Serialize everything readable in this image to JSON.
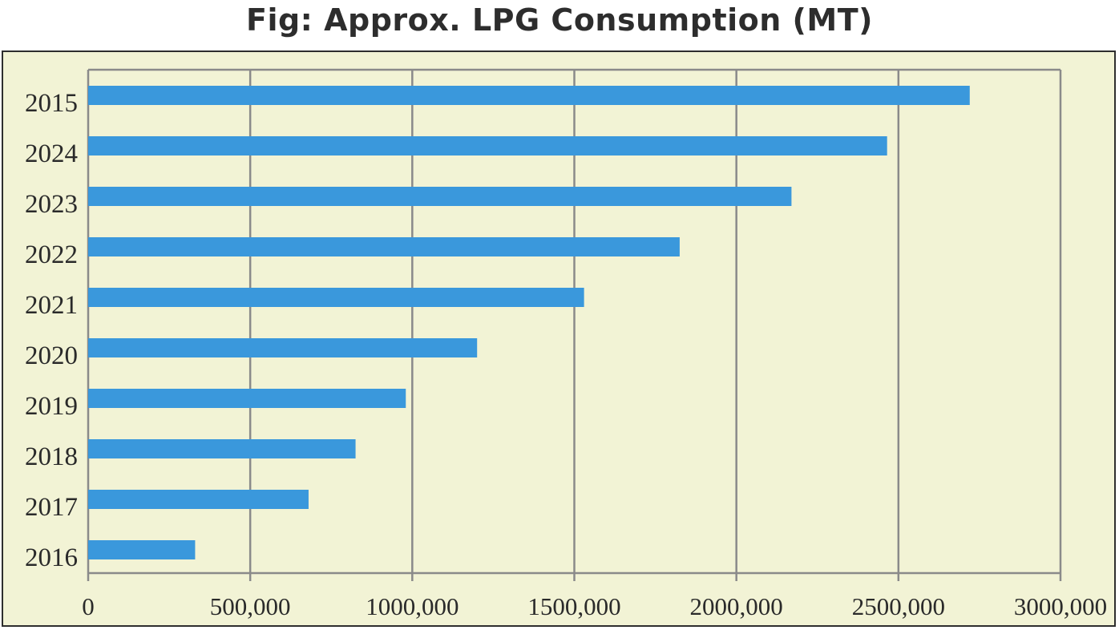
{
  "chart_data": {
    "type": "bar",
    "orientation": "horizontal",
    "title": "Fig: Approx. LPG Consumption (MT)",
    "xlabel": "",
    "ylabel": "",
    "categories": [
      "2015",
      "2024",
      "2023",
      "2022",
      "2021",
      "2020",
      "2019",
      "2018",
      "2017",
      "2016"
    ],
    "values": [
      2720000,
      2465000,
      2170000,
      1825000,
      1530000,
      1200000,
      980000,
      825000,
      680000,
      330000
    ],
    "xlim": [
      0,
      3000000
    ],
    "xticks": [
      "0",
      "500,000",
      "1000,000",
      "1500,000",
      "2000,000",
      "2500,000",
      "3000,000"
    ],
    "grid": "vertical",
    "legend": "none",
    "colors": {
      "bar": "#3a98dc",
      "background": "#f2f3d5",
      "grid": "#8a8a8a",
      "frame": "#2e2e2e"
    }
  }
}
